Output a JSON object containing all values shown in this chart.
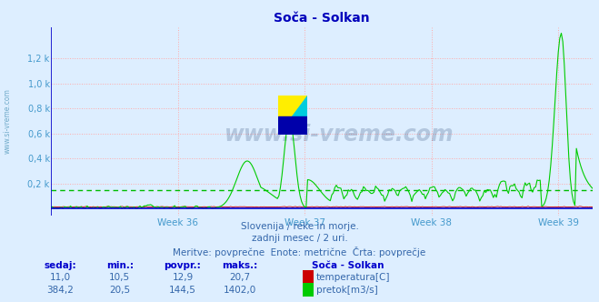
{
  "title": "Soča - Solkan",
  "bg_color": "#ddeeff",
  "plot_bg_color": "#ddeeff",
  "grid_color": "#ffaaaa",
  "axis_color": "#0000cc",
  "tick_color": "#4499cc",
  "temp_color": "#cc0000",
  "flow_color": "#00cc00",
  "avg_flow_color": "#00bb00",
  "week_labels": [
    "Week 36",
    "Week 37",
    "Week 38",
    "Week 39"
  ],
  "ytick_labels": [
    "0,2 k",
    "0,4 k",
    "0,6 k",
    "0,8 k",
    "1,0 k",
    "1,2 k"
  ],
  "ytick_values": [
    200,
    400,
    600,
    800,
    1000,
    1200
  ],
  "ymax": 1450,
  "ymin": -60,
  "subtitle1": "Slovenija / reke in morje.",
  "subtitle2": "zadnji mesec / 2 uri.",
  "subtitle3": "Meritve: povprečne  Enote: metrične  Črta: povprečje",
  "footer_labels": [
    "sedaj:",
    "min.:",
    "povpr.:",
    "maks.:"
  ],
  "footer_temp": [
    "11,0",
    "10,5",
    "12,9",
    "20,7"
  ],
  "footer_flow": [
    "384,2",
    "20,5",
    "144,5",
    "1402,0"
  ],
  "station_name": "Soča - Solkan",
  "temp_label": "temperatura[C]",
  "flow_label": "pretok[m3/s]",
  "avg_flow_value": 144.5,
  "watermark": "www.si-vreme.com"
}
